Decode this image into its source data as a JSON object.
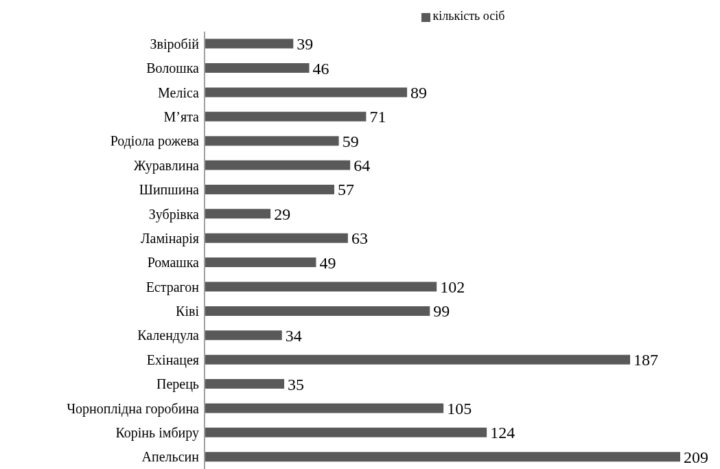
{
  "chart_data": {
    "type": "bar",
    "orientation": "horizontal",
    "categories": [
      "Звіробій",
      "Волошка",
      "Меліса",
      "М’ята",
      "Родіола рожева",
      "Журавлина",
      "Шипшина",
      "Зубрівка",
      "Ламінарія",
      "Ромашка",
      "Естрагон",
      "Ківі",
      "Календула",
      "Ехінацея",
      "Перець",
      "Чорноплідна горобина",
      "Корінь імбиру",
      "Апельсин"
    ],
    "series": [
      {
        "name": "кількість осіб",
        "color": "#595959",
        "values": [
          39,
          46,
          89,
          71,
          59,
          64,
          57,
          29,
          63,
          49,
          102,
          99,
          34,
          187,
          35,
          105,
          124,
          209
        ]
      }
    ],
    "data_labels": true,
    "legend": "top",
    "grid": false
  }
}
